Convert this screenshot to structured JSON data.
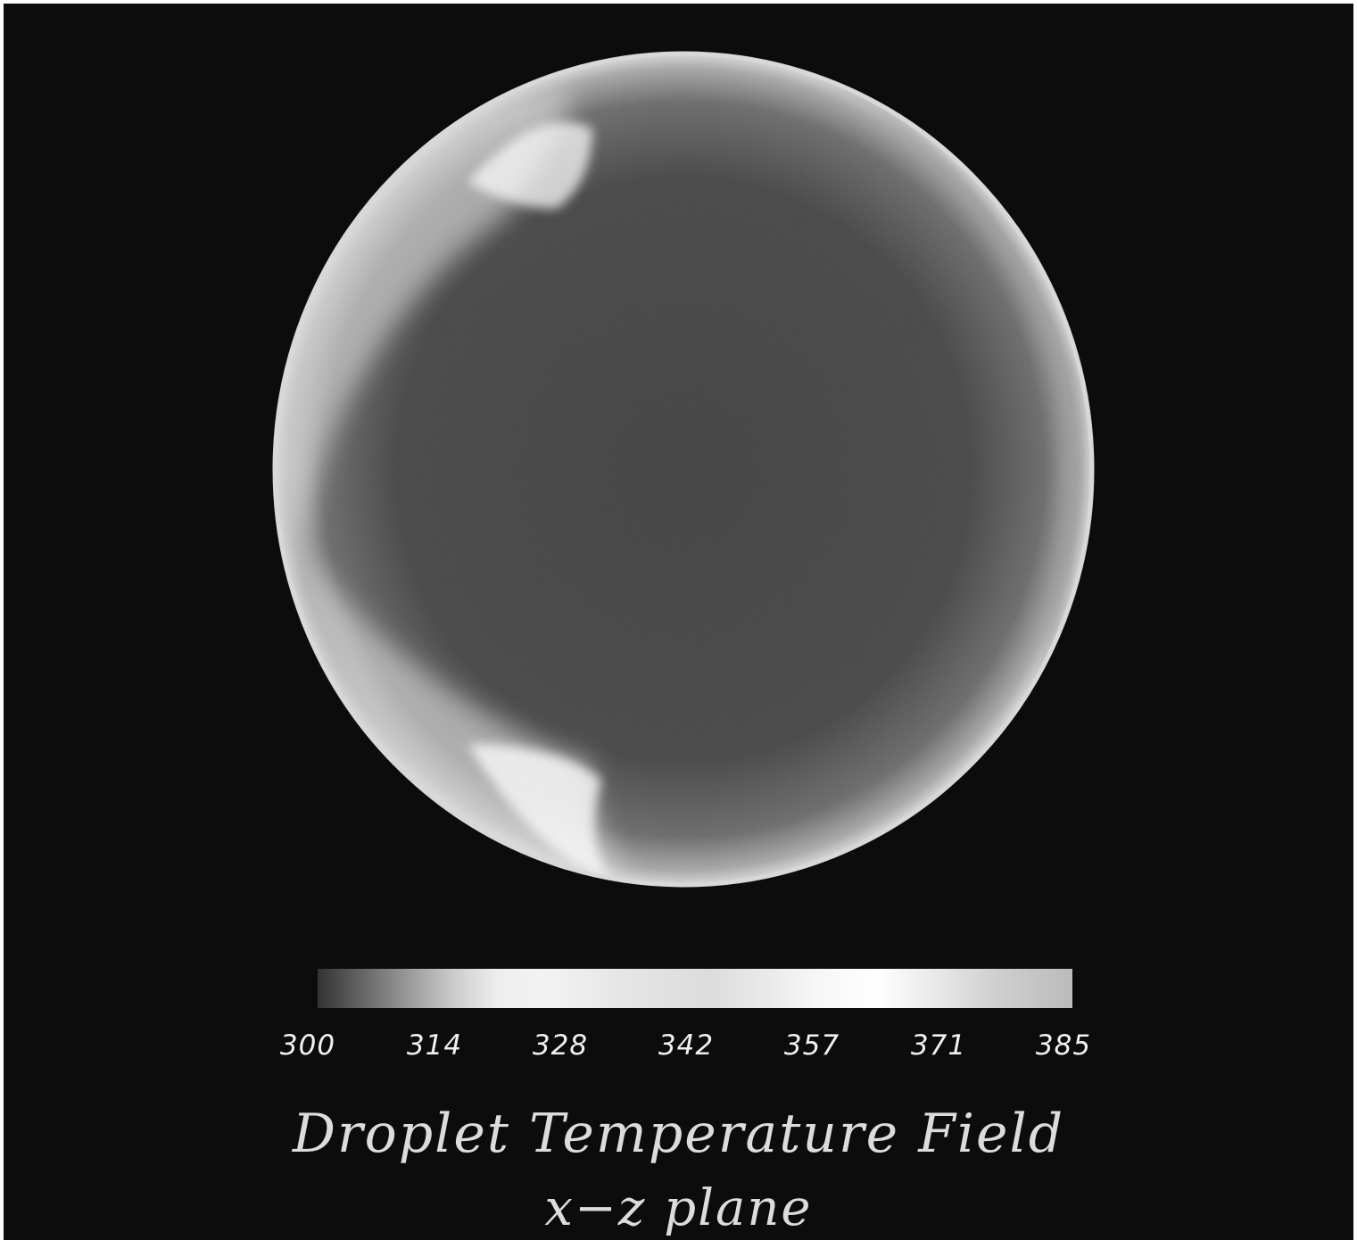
{
  "figure": {
    "title": "Droplet Temperature Field",
    "subtitle": "x−z plane"
  },
  "colorbar": {
    "ticks": [
      "300",
      "314",
      "328",
      "342",
      "357",
      "371",
      "385"
    ]
  },
  "colors": {
    "background": "#0c0c0c",
    "text": "#dcdcdc"
  }
}
